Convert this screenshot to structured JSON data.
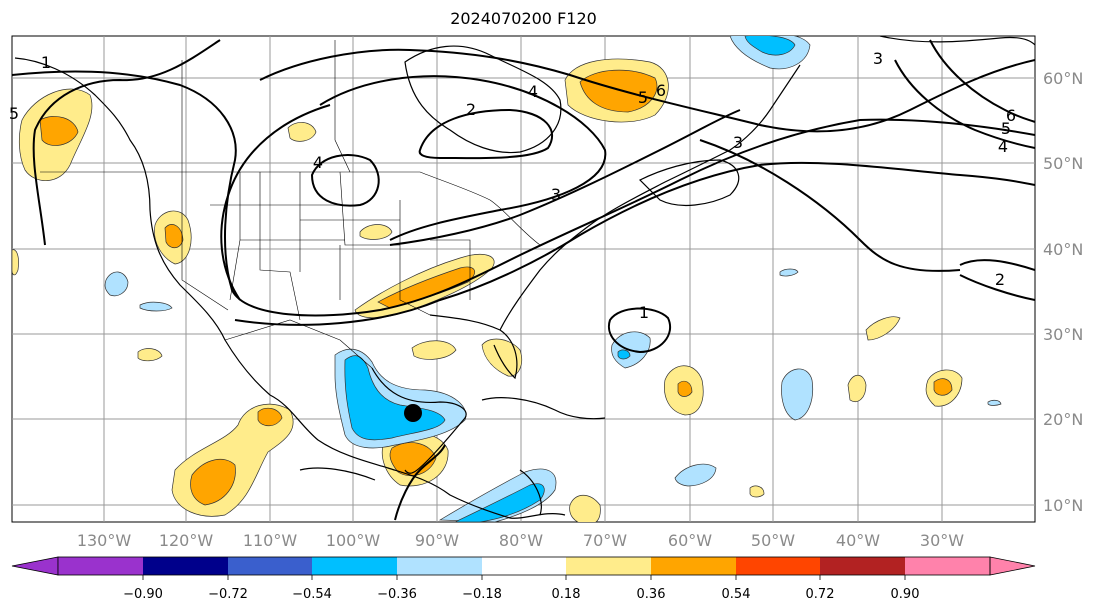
{
  "title": "2024070200 F120",
  "map": {
    "lon_labels": [
      "130°W",
      "120°W",
      "110°W",
      "100°W",
      "90°W",
      "80°W",
      "70°W",
      "60°W",
      "50°W",
      "40°W",
      "30°W"
    ],
    "lat_labels": [
      "60°N",
      "50°N",
      "40°N",
      "30°N",
      "20°N",
      "10°N"
    ],
    "contour_labels": [
      "1",
      "1",
      "2",
      "2",
      "3",
      "3",
      "3",
      "4",
      "4",
      "4",
      "5",
      "5",
      "5",
      "6",
      "6"
    ],
    "marker": "storm-center-dot",
    "contour_color": "#000000"
  },
  "colorbar": {
    "colors": [
      "#9a32cd",
      "#00008b",
      "#3a5fcd",
      "#00bfff",
      "#b0e2ff",
      "#ffffff",
      "#ffec8b",
      "#ffa500",
      "#ff4500",
      "#b22222",
      "#ff82ab"
    ],
    "tick_labels": [
      "−0.90",
      "−0.72",
      "−0.54",
      "−0.36",
      "−0.18",
      "0.18",
      "0.36",
      "0.54",
      "0.72",
      "0.90"
    ]
  }
}
